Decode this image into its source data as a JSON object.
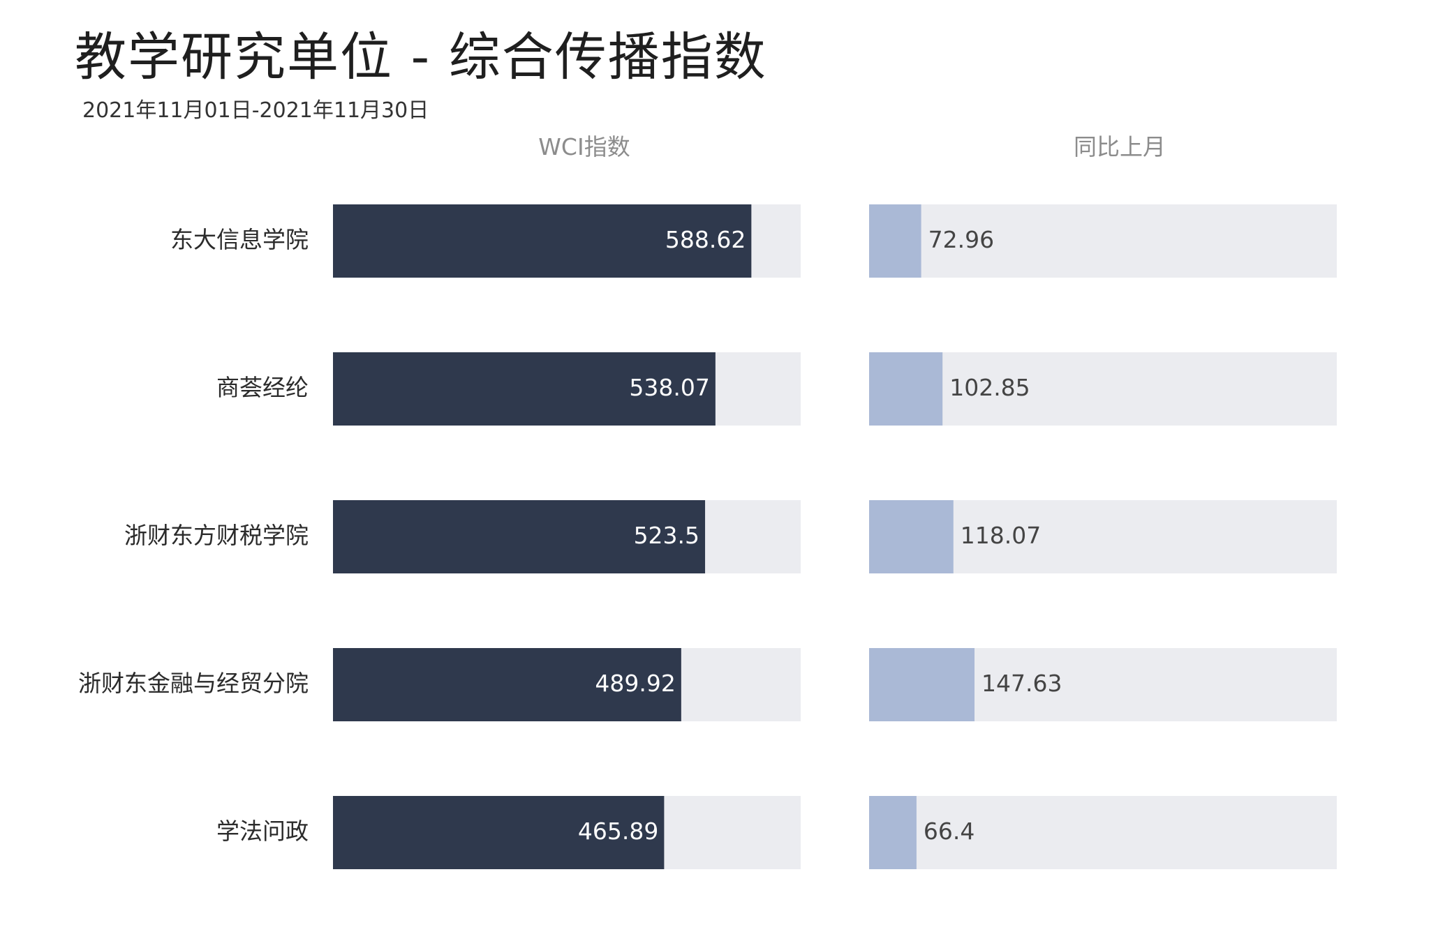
{
  "title": "教学研究单位 - 综合传播指数",
  "subtitle": "2021年11月01日-2021年11月30日",
  "colors": {
    "wci_bar": "#2f394d",
    "mom_bar": "#aab9d6",
    "track": "#ebecf0"
  },
  "chart_data": {
    "type": "bar",
    "orientation": "horizontal",
    "title": "教学研究单位 - 综合传播指数",
    "subtitle": "2021年11月01日-2021年11月30日",
    "categories": [
      "东大信息学院",
      "商荟经纶",
      "浙财东方财税学院",
      "浙财东金融与经贸分院",
      "学法问政"
    ],
    "series": [
      {
        "name": "WCI指数",
        "values": [
          588.62,
          538.07,
          523.5,
          489.92,
          465.89
        ],
        "xlim": [
          0,
          658
        ]
      },
      {
        "name": "同比上月",
        "values": [
          72.96,
          102.85,
          118.07,
          147.63,
          66.4
        ],
        "xlim": [
          0,
          655
        ]
      }
    ],
    "legend": "none",
    "grid": false
  }
}
